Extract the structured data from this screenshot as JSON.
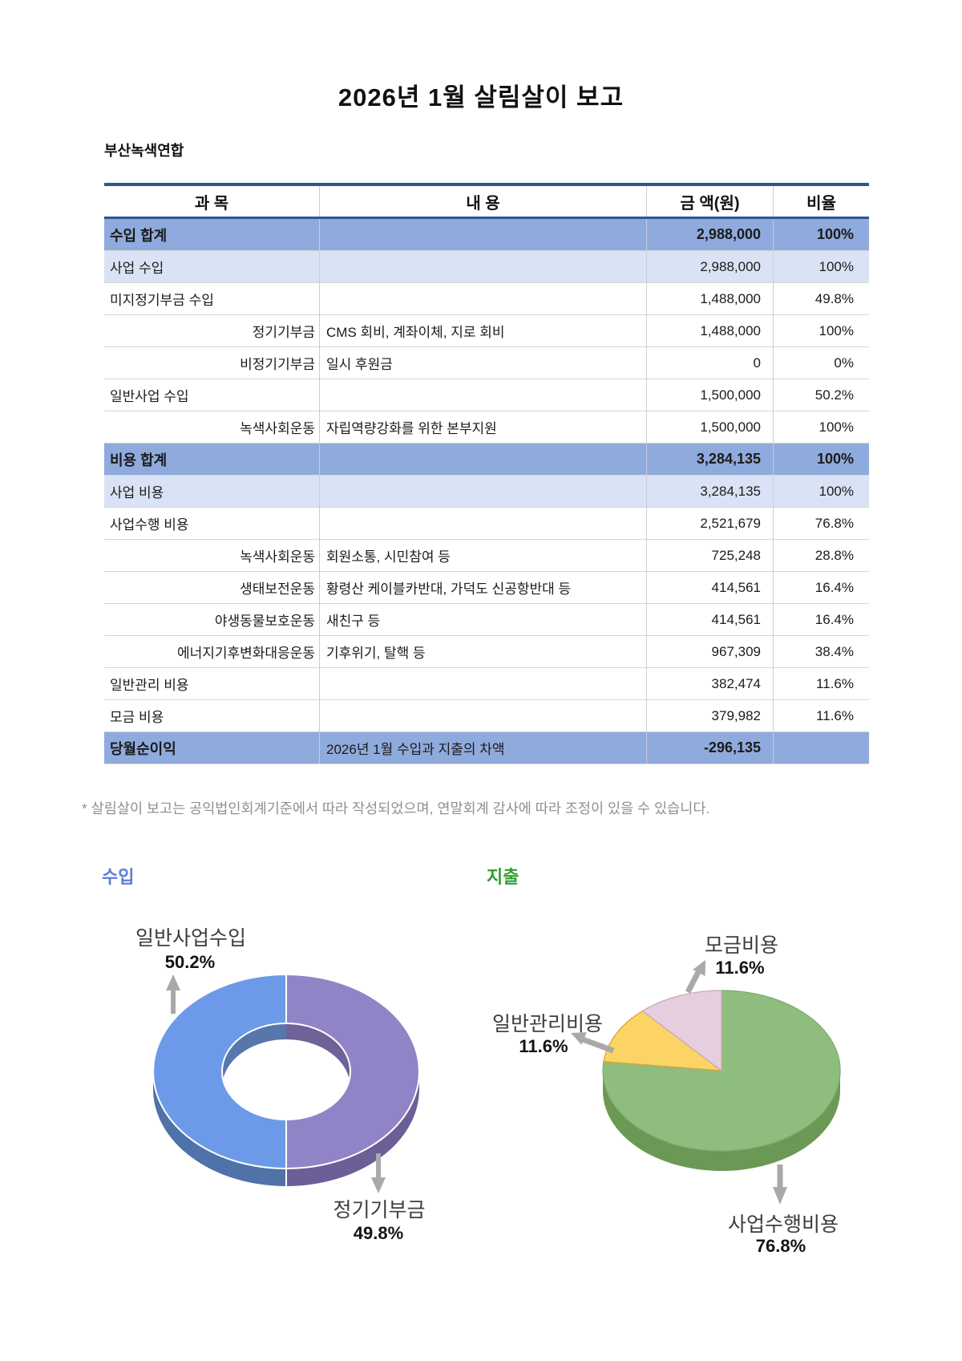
{
  "page": {
    "title": "2026년 1월 살림살이 보고",
    "org": "부산녹색연합",
    "footnote": "* 살림살이 보고는 공익법인회계기준에서 따라 작성되었으며, 연말회계 감사에 따라 조정이 있을 수 있습니다."
  },
  "table": {
    "headers": [
      "과 목",
      "내 용",
      "금 액(원)",
      "비율"
    ],
    "rows": [
      {
        "account": "수입 합계",
        "detail": "",
        "amount": "2,988,000",
        "ratio": "100%",
        "style": "total"
      },
      {
        "account": "사업 수입",
        "detail": "",
        "amount": "2,988,000",
        "ratio": "100%",
        "style": "subtotal"
      },
      {
        "account": "미지정기부금 수입",
        "detail": "",
        "amount": "1,488,000",
        "ratio": "49.8%",
        "style": "item"
      },
      {
        "account": "정기기부금",
        "detail": "CMS 회비, 계좌이체, 지로 회비",
        "amount": "1,488,000",
        "ratio": "100%",
        "style": "subitem"
      },
      {
        "account": "비정기기부금",
        "detail": "일시 후원금",
        "amount": "0",
        "ratio": "0%",
        "style": "subitem"
      },
      {
        "account": "일반사업 수입",
        "detail": "",
        "amount": "1,500,000",
        "ratio": "50.2%",
        "style": "item"
      },
      {
        "account": "녹색사회운동",
        "detail": "자립역량강화를 위한 본부지원",
        "amount": "1,500,000",
        "ratio": "100%",
        "style": "subitem"
      },
      {
        "account": "비용 합계",
        "detail": "",
        "amount": "3,284,135",
        "ratio": "100%",
        "style": "total"
      },
      {
        "account": "사업 비용",
        "detail": "",
        "amount": "3,284,135",
        "ratio": "100%",
        "style": "subtotal"
      },
      {
        "account": "사업수행 비용",
        "detail": "",
        "amount": "2,521,679",
        "ratio": "76.8%",
        "style": "item"
      },
      {
        "account": "녹색사회운동",
        "detail": "회원소통, 시민참여 등",
        "amount": "725,248",
        "ratio": "28.8%",
        "style": "subitem"
      },
      {
        "account": "생태보전운동",
        "detail": "황령산 케이블카반대, 가덕도 신공항반대 등",
        "amount": "414,561",
        "ratio": "16.4%",
        "style": "subitem"
      },
      {
        "account": "야생동물보호운동",
        "detail": "새친구 등",
        "amount": "414,561",
        "ratio": "16.4%",
        "style": "subitem"
      },
      {
        "account": "에너지기후변화대응운동",
        "detail": "기후위기, 탈핵 등",
        "amount": "967,309",
        "ratio": "38.4%",
        "style": "subitem"
      },
      {
        "account": "일반관리 비용",
        "detail": "",
        "amount": "382,474",
        "ratio": "11.6%",
        "style": "item"
      },
      {
        "account": "모금 비용",
        "detail": "",
        "amount": "379,982",
        "ratio": "11.6%",
        "style": "item"
      },
      {
        "account": "당월순이익",
        "detail": "2026년 1월 수입과 지출의 차액",
        "amount": "-296,135",
        "ratio": "",
        "style": "net"
      }
    ]
  },
  "chart_data": [
    {
      "type": "pie",
      "variant": "donut-3d",
      "title": "수입",
      "title_color": "#5b7fd9",
      "legend_position": "callout-arrows",
      "slices": [
        {
          "label": "일반사업수입",
          "value": 50.2,
          "pct": "50.2%",
          "color": "#6d9ae8"
        },
        {
          "label": "정기기부금",
          "value": 49.8,
          "pct": "49.8%",
          "color": "#9184c6"
        }
      ]
    },
    {
      "type": "pie",
      "variant": "pie-3d",
      "title": "지출",
      "title_color": "#2f9e31",
      "legend_position": "callout-arrows",
      "slices": [
        {
          "label": "사업수행비용",
          "value": 76.8,
          "pct": "76.8%",
          "color": "#8ebd7d"
        },
        {
          "label": "일반관리비용",
          "value": 11.6,
          "pct": "11.6%",
          "color": "#fbd465"
        },
        {
          "label": "모금비용",
          "value": 11.6,
          "pct": "11.6%",
          "color": "#e6cede"
        }
      ]
    }
  ]
}
